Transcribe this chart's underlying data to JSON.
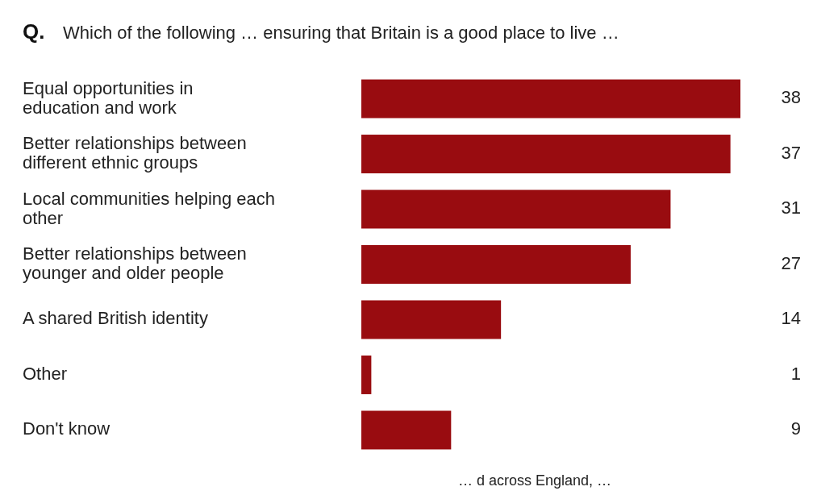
{
  "chart_data": {
    "type": "bar",
    "orientation": "horizontal",
    "title": "Which of the following … ensuring that Britain is a good place to live …",
    "categories": [
      "Equal opportunities in education and work",
      "Better relationships between different ethnic groups",
      "Local communities helping each other",
      "Better relationships between younger and older people",
      "A shared British identity",
      "Other",
      "Don't know"
    ],
    "values": [
      38,
      37,
      31,
      27,
      14,
      1,
      9
    ],
    "color": "#990c10",
    "data_labels": true,
    "annotations": [
      "Q.",
      "… d across England, …"
    ]
  }
}
